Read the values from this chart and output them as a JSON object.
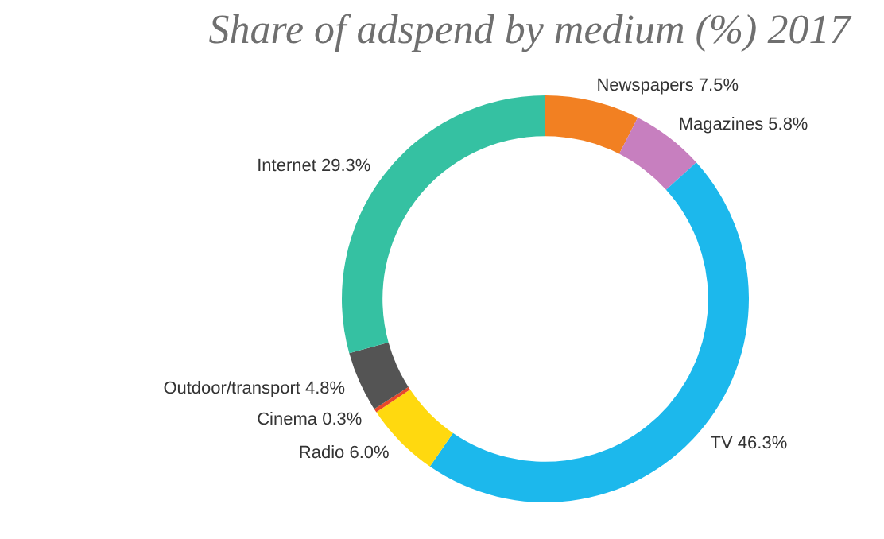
{
  "chart_data": {
    "type": "donut",
    "title": "Share of adspend by medium (%) 2017",
    "categories": [
      "Newspapers",
      "Magazines",
      "TV",
      "Radio",
      "Cinema",
      "Outdoor/transport",
      "Internet"
    ],
    "values": [
      7.5,
      5.8,
      46.3,
      6.0,
      0.3,
      4.8,
      29.3
    ],
    "value_labels": [
      "7.5%",
      "5.8%",
      "46.3%",
      "6.0%",
      "0.3%",
      "4.8%",
      "29.3%"
    ],
    "colors": [
      "#f28022",
      "#c77fbf",
      "#1cb8ec",
      "#ffd90f",
      "#e8482c",
      "#545454",
      "#35c1a2"
    ],
    "legend": false
  }
}
